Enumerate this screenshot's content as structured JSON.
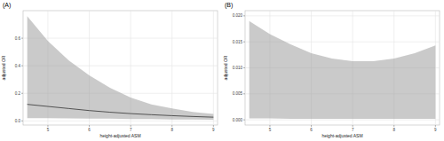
{
  "chart_data": [
    {
      "type": "line",
      "title": "(A)",
      "x_label": "height-adjusted ASM",
      "y_label": "adjusted OR",
      "x": [
        4.5,
        5,
        5.5,
        6,
        6.5,
        7,
        7.5,
        8,
        8.5,
        9
      ],
      "values": [
        0.12,
        0.105,
        0.09,
        0.075,
        0.063,
        0.053,
        0.045,
        0.038,
        0.032,
        0.027
      ],
      "ci_lower": [
        0.02,
        0.02,
        0.019,
        0.017,
        0.016,
        0.014,
        0.013,
        0.011,
        0.01,
        0.009
      ],
      "ci_upper": [
        0.76,
        0.58,
        0.44,
        0.33,
        0.24,
        0.17,
        0.12,
        0.09,
        0.065,
        0.05
      ],
      "color": "#333333",
      "xlim": [
        4.4,
        9.1
      ],
      "xticks": [
        5,
        6,
        7,
        8,
        9
      ],
      "ylim": [
        -0.03,
        0.8
      ],
      "yticks": [
        {
          "value": 0,
          "label": "0.0"
        },
        0.2,
        0.4,
        0.6
      ],
      "grid": true
    },
    {
      "type": "area",
      "title": "(B)",
      "x_label": "height-adjusted ASM",
      "y_label": "adjusted OR",
      "x": [
        4.5,
        5,
        5.5,
        6,
        6.5,
        7,
        7.5,
        8,
        8.5,
        9
      ],
      "ci_lower": [
        0.0003,
        0.0003,
        0.0002,
        0.0002,
        0.0002,
        0.0002,
        0.0002,
        0.0002,
        0.0002,
        0.0002
      ],
      "ci_upper": [
        0.019,
        0.0165,
        0.0145,
        0.0128,
        0.0118,
        0.0113,
        0.0113,
        0.0118,
        0.0128,
        0.0143
      ],
      "color": "#999999",
      "xlim": [
        4.4,
        9.1
      ],
      "xticks": [
        5,
        6,
        7,
        8,
        9
      ],
      "ylim": [
        -0.001,
        0.021
      ],
      "yticks": [
        {
          "value": 0,
          "label": "0.000"
        },
        {
          "value": 0.005,
          "label": "0.005"
        },
        {
          "value": 0.01,
          "label": "0.010"
        },
        {
          "value": 0.015,
          "label": "0.015"
        },
        {
          "value": 0.02,
          "label": "0.020"
        }
      ],
      "grid": true
    }
  ]
}
